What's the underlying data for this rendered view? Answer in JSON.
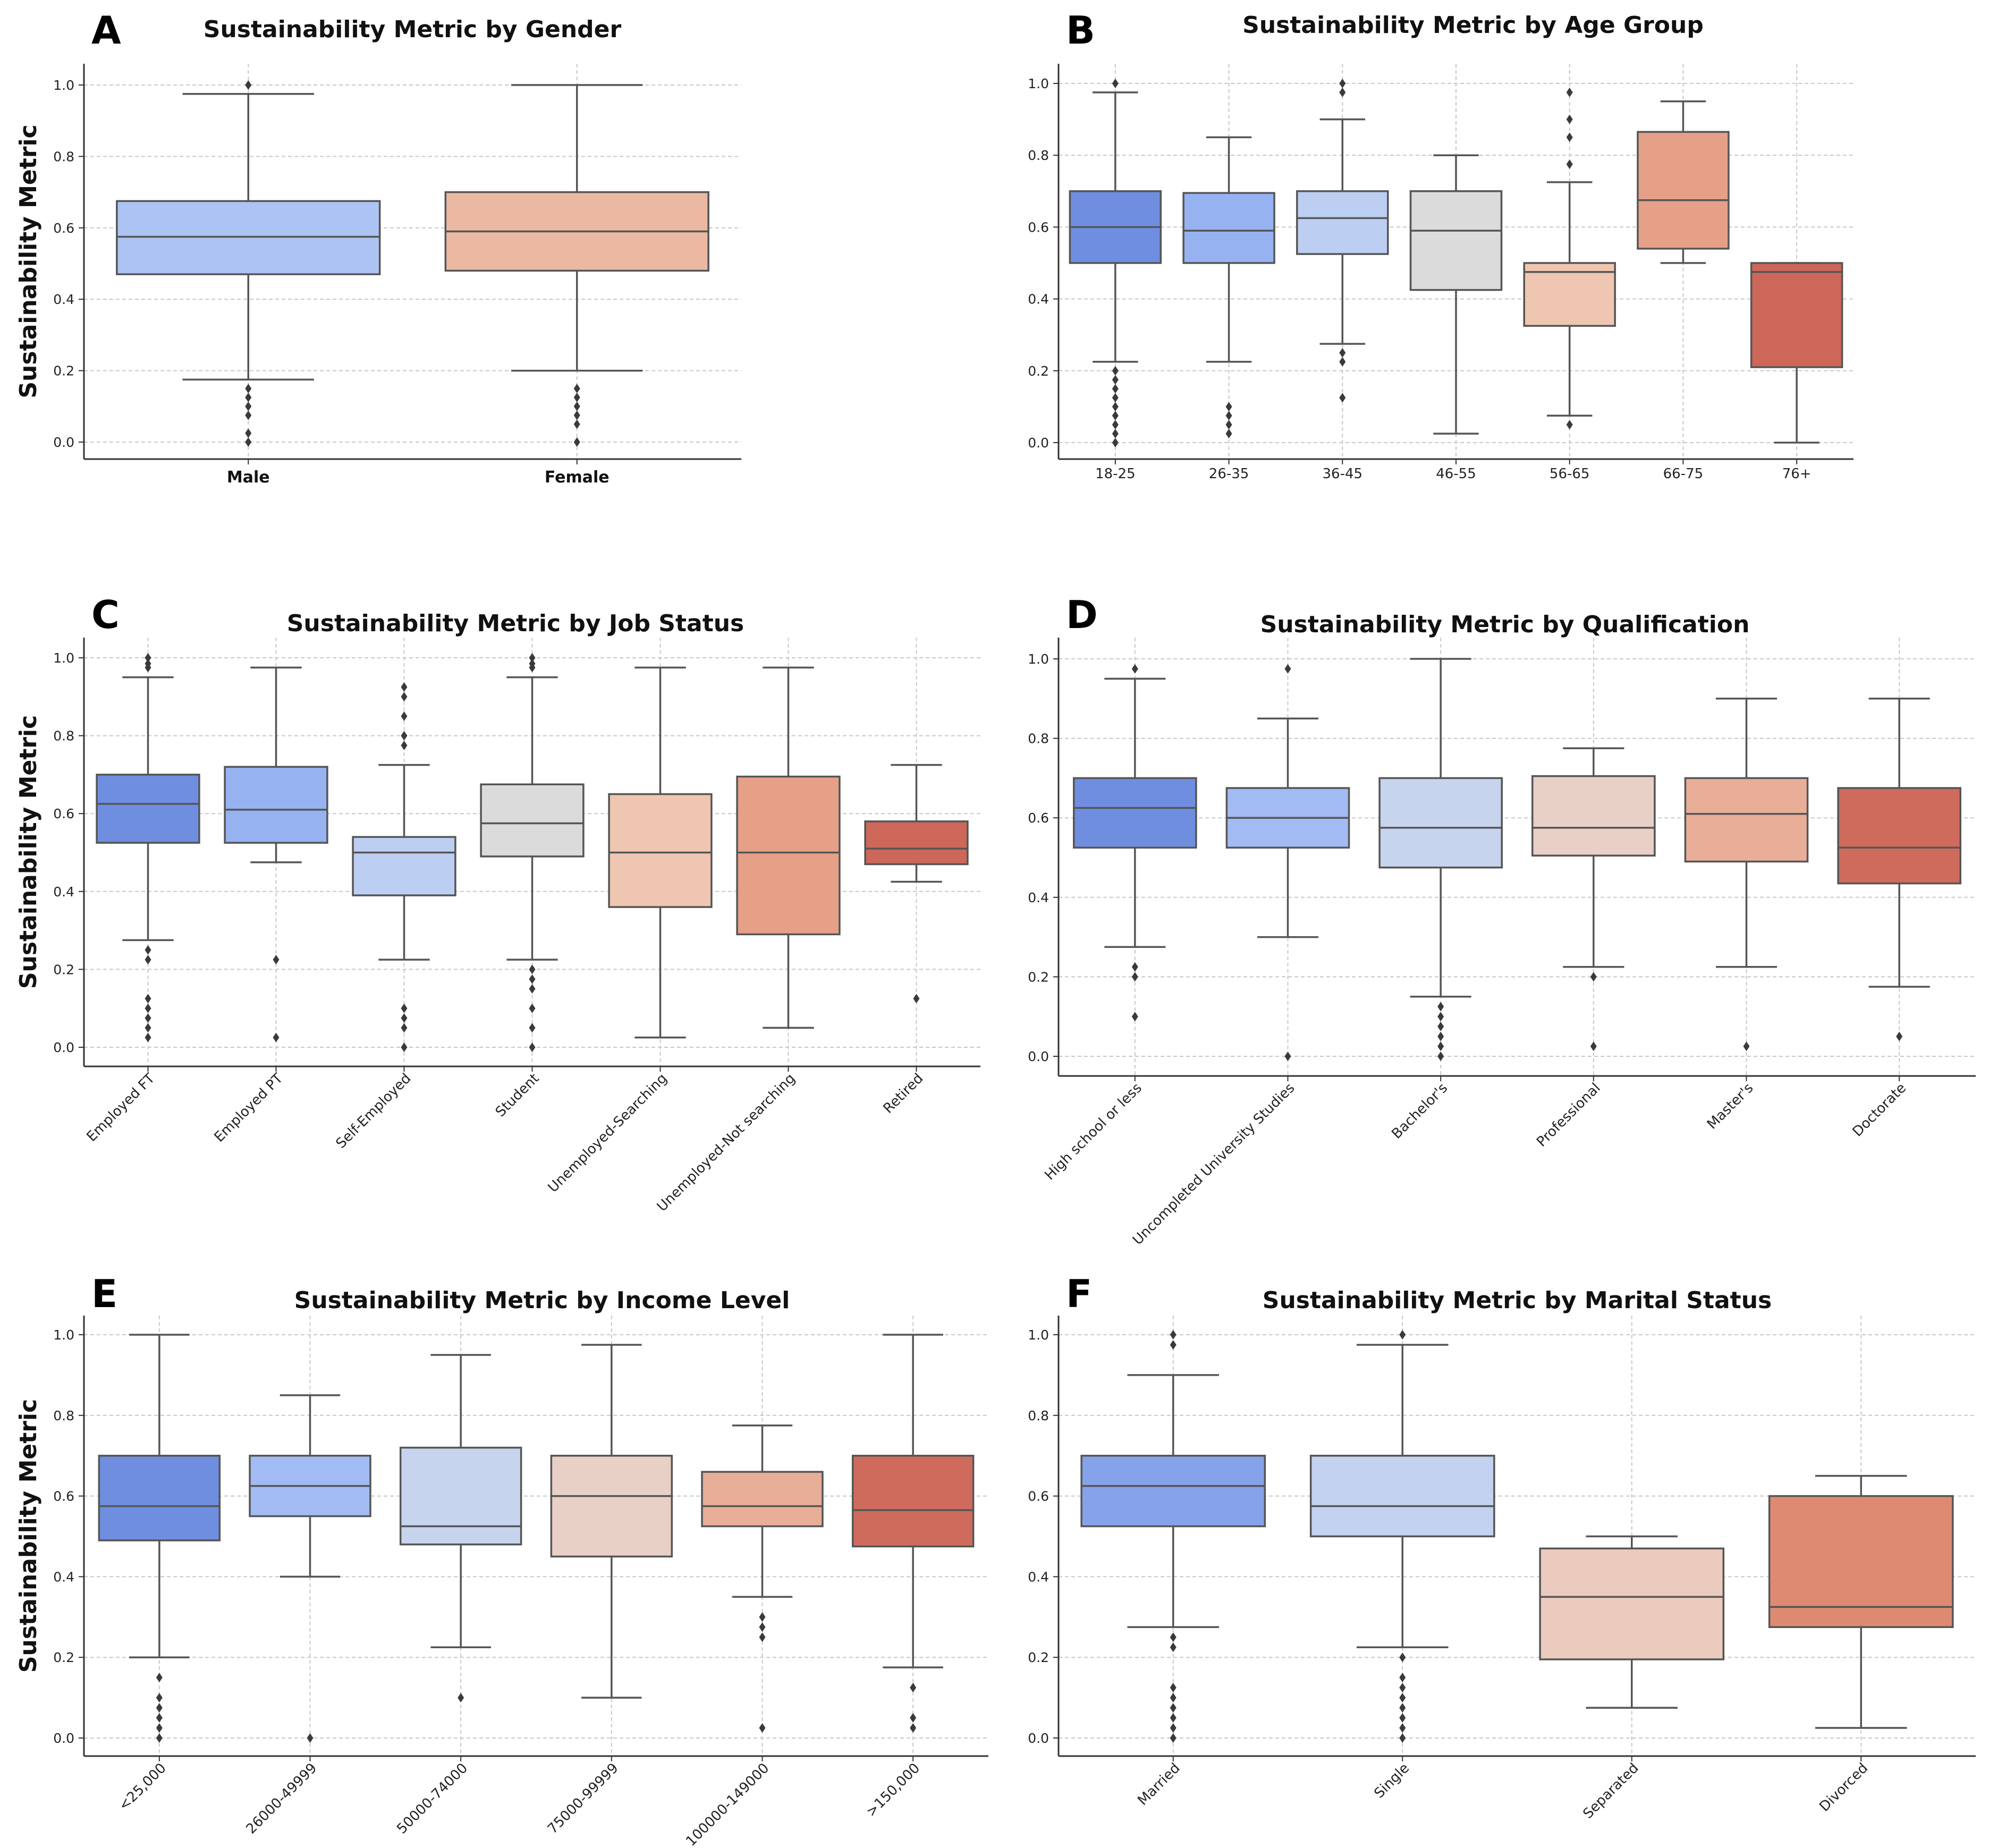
{
  "ylabel": "Sustainability Metric",
  "chart_data": [
    {
      "type": "box",
      "panel": "A",
      "title": "Sustainability Metric by Gender",
      "ylabel": "Sustainability Metric",
      "ylim": [
        -0.05,
        1.05
      ],
      "yticks": [
        "0.0",
        "0.2",
        "0.4",
        "0.6",
        "0.8",
        "1.0"
      ],
      "label_style": "bold",
      "boxes": [
        {
          "label": "Male",
          "color": "#adc3f3",
          "q1": 0.47,
          "median": 0.575,
          "q3": 0.675,
          "low": 0.175,
          "high": 0.975,
          "fliers": [
            1.0,
            0.15,
            0.125,
            0.1,
            0.075,
            0.025,
            0.0
          ]
        },
        {
          "label": "Female",
          "color": "#ebb9a2",
          "q1": 0.48,
          "median": 0.59,
          "q3": 0.7,
          "low": 0.2,
          "high": 1.0,
          "fliers": [
            0.15,
            0.125,
            0.1,
            0.075,
            0.05,
            0.0
          ]
        }
      ]
    },
    {
      "type": "box",
      "panel": "B",
      "title": "Sustainability Metric by Age Group",
      "ylabel": "",
      "ylim": [
        -0.05,
        1.05
      ],
      "yticks": [
        "0.0",
        "0.2",
        "0.4",
        "0.6",
        "0.8",
        "1.0"
      ],
      "label_style": "plain",
      "boxes": [
        {
          "label": "18-25",
          "color": "#6f8ee0",
          "q1": 0.5,
          "median": 0.6,
          "q3": 0.7,
          "low": 0.225,
          "high": 0.975,
          "fliers": [
            1.0,
            0.2,
            0.175,
            0.15,
            0.125,
            0.1,
            0.075,
            0.05,
            0.025,
            0.0
          ]
        },
        {
          "label": "26-35",
          "color": "#97b2f0",
          "q1": 0.5,
          "median": 0.59,
          "q3": 0.695,
          "low": 0.225,
          "high": 0.85,
          "fliers": [
            0.1,
            0.075,
            0.05,
            0.025
          ]
        },
        {
          "label": "36-45",
          "color": "#bccff2",
          "q1": 0.525,
          "median": 0.625,
          "q3": 0.7,
          "low": 0.275,
          "high": 0.9,
          "fliers": [
            1.0,
            0.975,
            0.25,
            0.225,
            0.125
          ]
        },
        {
          "label": "46-55",
          "color": "#dbdbdb",
          "q1": 0.425,
          "median": 0.59,
          "q3": 0.7,
          "low": 0.025,
          "high": 0.8,
          "fliers": []
        },
        {
          "label": "56-65",
          "color": "#efc6b1",
          "q1": 0.325,
          "median": 0.475,
          "q3": 0.5,
          "low": 0.075,
          "high": 0.725,
          "fliers": [
            0.975,
            0.9,
            0.85,
            0.775,
            0.05
          ]
        },
        {
          "label": "66-75",
          "color": "#e6a088",
          "q1": 0.54,
          "median": 0.675,
          "q3": 0.865,
          "low": 0.5,
          "high": 0.95,
          "fliers": []
        },
        {
          "label": "76+",
          "color": "#cc675a",
          "q1": 0.21,
          "median": 0.475,
          "q3": 0.5,
          "low": 0.0,
          "high": 0.5,
          "fliers": []
        }
      ]
    },
    {
      "type": "box",
      "panel": "C",
      "title": "Sustainability Metric by Job Status",
      "ylabel": "Sustainability Metric",
      "ylim": [
        -0.05,
        1.05
      ],
      "yticks": [
        "0.0",
        "0.2",
        "0.4",
        "0.6",
        "0.8",
        "1.0"
      ],
      "label_style": "rotated",
      "boxes": [
        {
          "label": "Employed FT",
          "color": "#6f8ee0",
          "q1": 0.525,
          "median": 0.625,
          "q3": 0.7,
          "low": 0.275,
          "high": 0.95,
          "fliers": [
            1.0,
            0.985,
            0.975,
            0.25,
            0.225,
            0.125,
            0.1,
            0.075,
            0.05,
            0.025
          ]
        },
        {
          "label": "Employed PT",
          "color": "#97b2f0",
          "q1": 0.525,
          "median": 0.61,
          "q3": 0.72,
          "low": 0.475,
          "high": 0.975,
          "fliers": [
            0.225,
            0.025
          ]
        },
        {
          "label": "Self-Employed",
          "color": "#bccff2",
          "q1": 0.39,
          "median": 0.5,
          "q3": 0.54,
          "low": 0.225,
          "high": 0.725,
          "fliers": [
            0.925,
            0.9,
            0.85,
            0.8,
            0.775,
            0.1,
            0.075,
            0.05,
            0.0
          ]
        },
        {
          "label": "Student",
          "color": "#dbdbdb",
          "q1": 0.49,
          "median": 0.575,
          "q3": 0.675,
          "low": 0.225,
          "high": 0.95,
          "fliers": [
            1.0,
            0.985,
            0.975,
            0.2,
            0.175,
            0.15,
            0.1,
            0.05,
            0.0
          ]
        },
        {
          "label": "Unemployed-Searching",
          "color": "#efc6b1",
          "q1": 0.36,
          "median": 0.5,
          "q3": 0.65,
          "low": 0.025,
          "high": 0.975,
          "fliers": []
        },
        {
          "label": "Unemployed-Not searching",
          "color": "#e6a088",
          "q1": 0.29,
          "median": 0.5,
          "q3": 0.695,
          "low": 0.05,
          "high": 0.975,
          "fliers": []
        },
        {
          "label": "Retired",
          "color": "#cc675a",
          "q1": 0.47,
          "median": 0.51,
          "q3": 0.58,
          "low": 0.425,
          "high": 0.725,
          "fliers": [
            0.125
          ]
        }
      ]
    },
    {
      "type": "box",
      "panel": "D",
      "title": "Sustainability Metric by Qualification",
      "ylabel": "",
      "ylim": [
        -0.05,
        1.05
      ],
      "yticks": [
        "0.0",
        "0.2",
        "0.4",
        "0.6",
        "0.8",
        "1.0"
      ],
      "label_style": "rotated",
      "boxes": [
        {
          "label": "High school or less",
          "color": "#6f8ee0",
          "q1": 0.525,
          "median": 0.625,
          "q3": 0.7,
          "low": 0.275,
          "high": 0.95,
          "fliers": [
            0.975,
            0.225,
            0.2,
            0.1
          ]
        },
        {
          "label": "Uncompleted University Studies",
          "color": "#a2bbf3",
          "q1": 0.525,
          "median": 0.6,
          "q3": 0.675,
          "low": 0.3,
          "high": 0.85,
          "fliers": [
            0.975,
            0.0
          ]
        },
        {
          "label": "Bachelor's",
          "color": "#c7d4ee",
          "q1": 0.475,
          "median": 0.575,
          "q3": 0.7,
          "low": 0.15,
          "high": 1.0,
          "fliers": [
            0.125,
            0.1,
            0.075,
            0.05,
            0.025,
            0.0
          ]
        },
        {
          "label": "Professional",
          "color": "#e8d0c6",
          "q1": 0.505,
          "median": 0.575,
          "q3": 0.705,
          "low": 0.225,
          "high": 0.775,
          "fliers": [
            0.2,
            0.025
          ]
        },
        {
          "label": "Master's",
          "color": "#e8ae98",
          "q1": 0.49,
          "median": 0.61,
          "q3": 0.7,
          "low": 0.225,
          "high": 0.9,
          "fliers": [
            0.025
          ]
        },
        {
          "label": "Doctorate",
          "color": "#cf6b5c",
          "q1": 0.435,
          "median": 0.525,
          "q3": 0.675,
          "low": 0.175,
          "high": 0.9,
          "fliers": [
            0.05
          ]
        }
      ]
    },
    {
      "type": "box",
      "panel": "E",
      "title": "Sustainability Metric by Income Level",
      "ylabel": "Sustainability Metric",
      "ylim": [
        -0.05,
        1.05
      ],
      "yticks": [
        "0.0",
        "0.2",
        "0.4",
        "0.6",
        "0.8",
        "1.0"
      ],
      "label_style": "rotated",
      "boxes": [
        {
          "label": "<25,000",
          "color": "#6f8ee0",
          "q1": 0.49,
          "median": 0.575,
          "q3": 0.7,
          "low": 0.2,
          "high": 1.0,
          "fliers": [
            0.15,
            0.1,
            0.075,
            0.05,
            0.025,
            0.0
          ]
        },
        {
          "label": "26000-49999",
          "color": "#a2bbf3",
          "q1": 0.55,
          "median": 0.625,
          "q3": 0.7,
          "low": 0.4,
          "high": 0.85,
          "fliers": [
            0.0
          ]
        },
        {
          "label": "50000-74000",
          "color": "#c7d4ee",
          "q1": 0.48,
          "median": 0.525,
          "q3": 0.72,
          "low": 0.225,
          "high": 0.95,
          "fliers": [
            0.1
          ]
        },
        {
          "label": "75000-99999",
          "color": "#e8d0c6",
          "q1": 0.45,
          "median": 0.6,
          "q3": 0.7,
          "low": 0.1,
          "high": 0.975,
          "fliers": []
        },
        {
          "label": "100000-149000",
          "color": "#e8ae98",
          "q1": 0.525,
          "median": 0.575,
          "q3": 0.66,
          "low": 0.35,
          "high": 0.775,
          "fliers": [
            0.3,
            0.275,
            0.25,
            0.025
          ]
        },
        {
          "label": ">150,000",
          "color": "#cf6b5c",
          "q1": 0.475,
          "median": 0.565,
          "q3": 0.7,
          "low": 0.175,
          "high": 1.0,
          "fliers": [
            0.125,
            0.05,
            0.025
          ]
        }
      ]
    },
    {
      "type": "box",
      "panel": "F",
      "title": "Sustainability Metric by Marital Status",
      "ylabel": "",
      "ylim": [
        -0.05,
        1.05
      ],
      "yticks": [
        "0.0",
        "0.2",
        "0.4",
        "0.6",
        "0.8",
        "1.0"
      ],
      "label_style": "rotated",
      "boxes": [
        {
          "label": "Married",
          "color": "#86a2ea",
          "q1": 0.525,
          "median": 0.625,
          "q3": 0.7,
          "low": 0.275,
          "high": 0.9,
          "fliers": [
            1.0,
            0.975,
            0.25,
            0.225,
            0.125,
            0.1,
            0.075,
            0.05,
            0.025,
            0.0
          ]
        },
        {
          "label": "Single",
          "color": "#c2d2f0",
          "q1": 0.5,
          "median": 0.575,
          "q3": 0.7,
          "low": 0.225,
          "high": 0.975,
          "fliers": [
            1.0,
            0.2,
            0.15,
            0.125,
            0.1,
            0.075,
            0.05,
            0.025,
            0.0
          ]
        },
        {
          "label": "Separated",
          "color": "#ebcbbd",
          "q1": 0.195,
          "median": 0.35,
          "q3": 0.47,
          "low": 0.075,
          "high": 0.5,
          "fliers": []
        },
        {
          "label": "Divorced",
          "color": "#de8a72",
          "q1": 0.275,
          "median": 0.325,
          "q3": 0.6,
          "low": 0.025,
          "high": 0.65,
          "fliers": []
        }
      ]
    }
  ]
}
